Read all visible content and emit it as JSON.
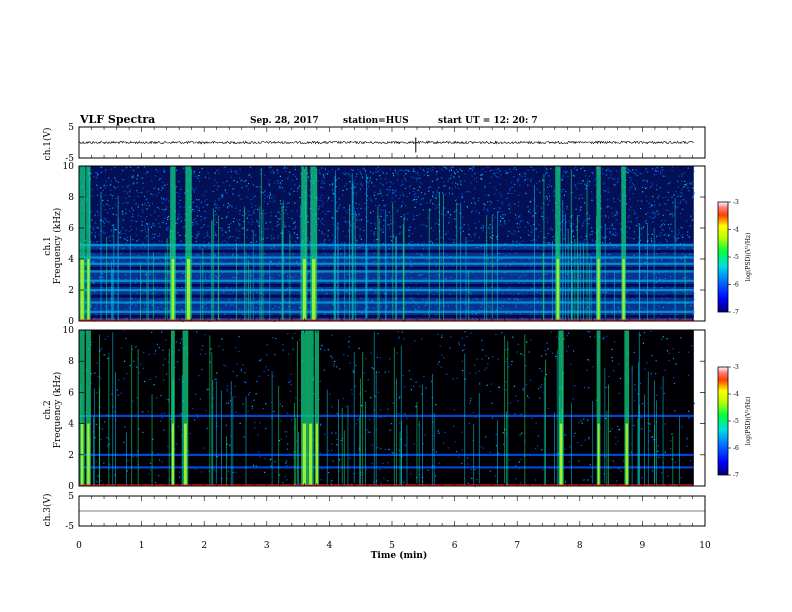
{
  "header": {
    "title": "VLF Spectra",
    "date": "Sep. 28, 2017",
    "station": "station=HUS",
    "start": "start UT =  12: 20: 7"
  },
  "chart_data": [
    {
      "type": "line",
      "name": "waveform-ch1",
      "ylabel": "ch.1(V)",
      "ylim": [
        -5,
        5
      ],
      "yticks": [
        "5",
        "-5"
      ],
      "baseline": 0,
      "amplitude": 0.4,
      "spike_at_min": 5.38
    },
    {
      "type": "heatmap",
      "name": "spectrogram-ch1",
      "ylabel_line1": "ch.1",
      "ylabel_line2": "Frequency (kHz)",
      "ylim": [
        0,
        10
      ],
      "yticks": [
        "0",
        "2",
        "4",
        "6",
        "8",
        "10"
      ],
      "colorbar": {
        "label": "log(PSD)(V²/Hz)",
        "ticks": [
          "-3",
          "-4",
          "-5",
          "-6",
          "-7"
        ],
        "range": [
          -7,
          -3
        ]
      },
      "strong_bursts_min": [
        0.05,
        0.15,
        1.5,
        1.75,
        3.6,
        3.75,
        7.65,
        8.3,
        8.7
      ],
      "bands_khz": [
        0.6,
        1.2,
        2.0,
        2.6,
        3.2,
        3.7,
        4.1,
        4.9
      ]
    },
    {
      "type": "heatmap",
      "name": "spectrogram-ch2",
      "ylabel_line1": "ch.2",
      "ylabel_line2": "Frequency (kHz)",
      "ylim": [
        0,
        10
      ],
      "yticks": [
        "0",
        "2",
        "4",
        "6",
        "8",
        "10"
      ],
      "colorbar": {
        "label": "log(PSD)(V²/Hz)",
        "ticks": [
          "-3",
          "-4",
          "-5",
          "-6",
          "-7"
        ],
        "range": [
          -7,
          -3
        ]
      },
      "strong_bursts_min": [
        0.05,
        0.15,
        1.5,
        1.7,
        3.6,
        3.7,
        3.8,
        7.7,
        8.3,
        8.75
      ],
      "bands_khz": [
        1.2,
        2.0,
        4.5
      ]
    },
    {
      "type": "line",
      "name": "waveform-ch3",
      "ylabel": "ch.3(V)",
      "ylim": [
        -5,
        5
      ],
      "yticks": [
        "5",
        "-5"
      ],
      "baseline": 0,
      "amplitude": 0
    }
  ],
  "xaxis": {
    "label": "Time (min)",
    "range": [
      0,
      10
    ],
    "data_end": 9.82,
    "ticks": [
      "0",
      "1",
      "2",
      "3",
      "4",
      "5",
      "6",
      "7",
      "8",
      "9",
      "10"
    ]
  }
}
